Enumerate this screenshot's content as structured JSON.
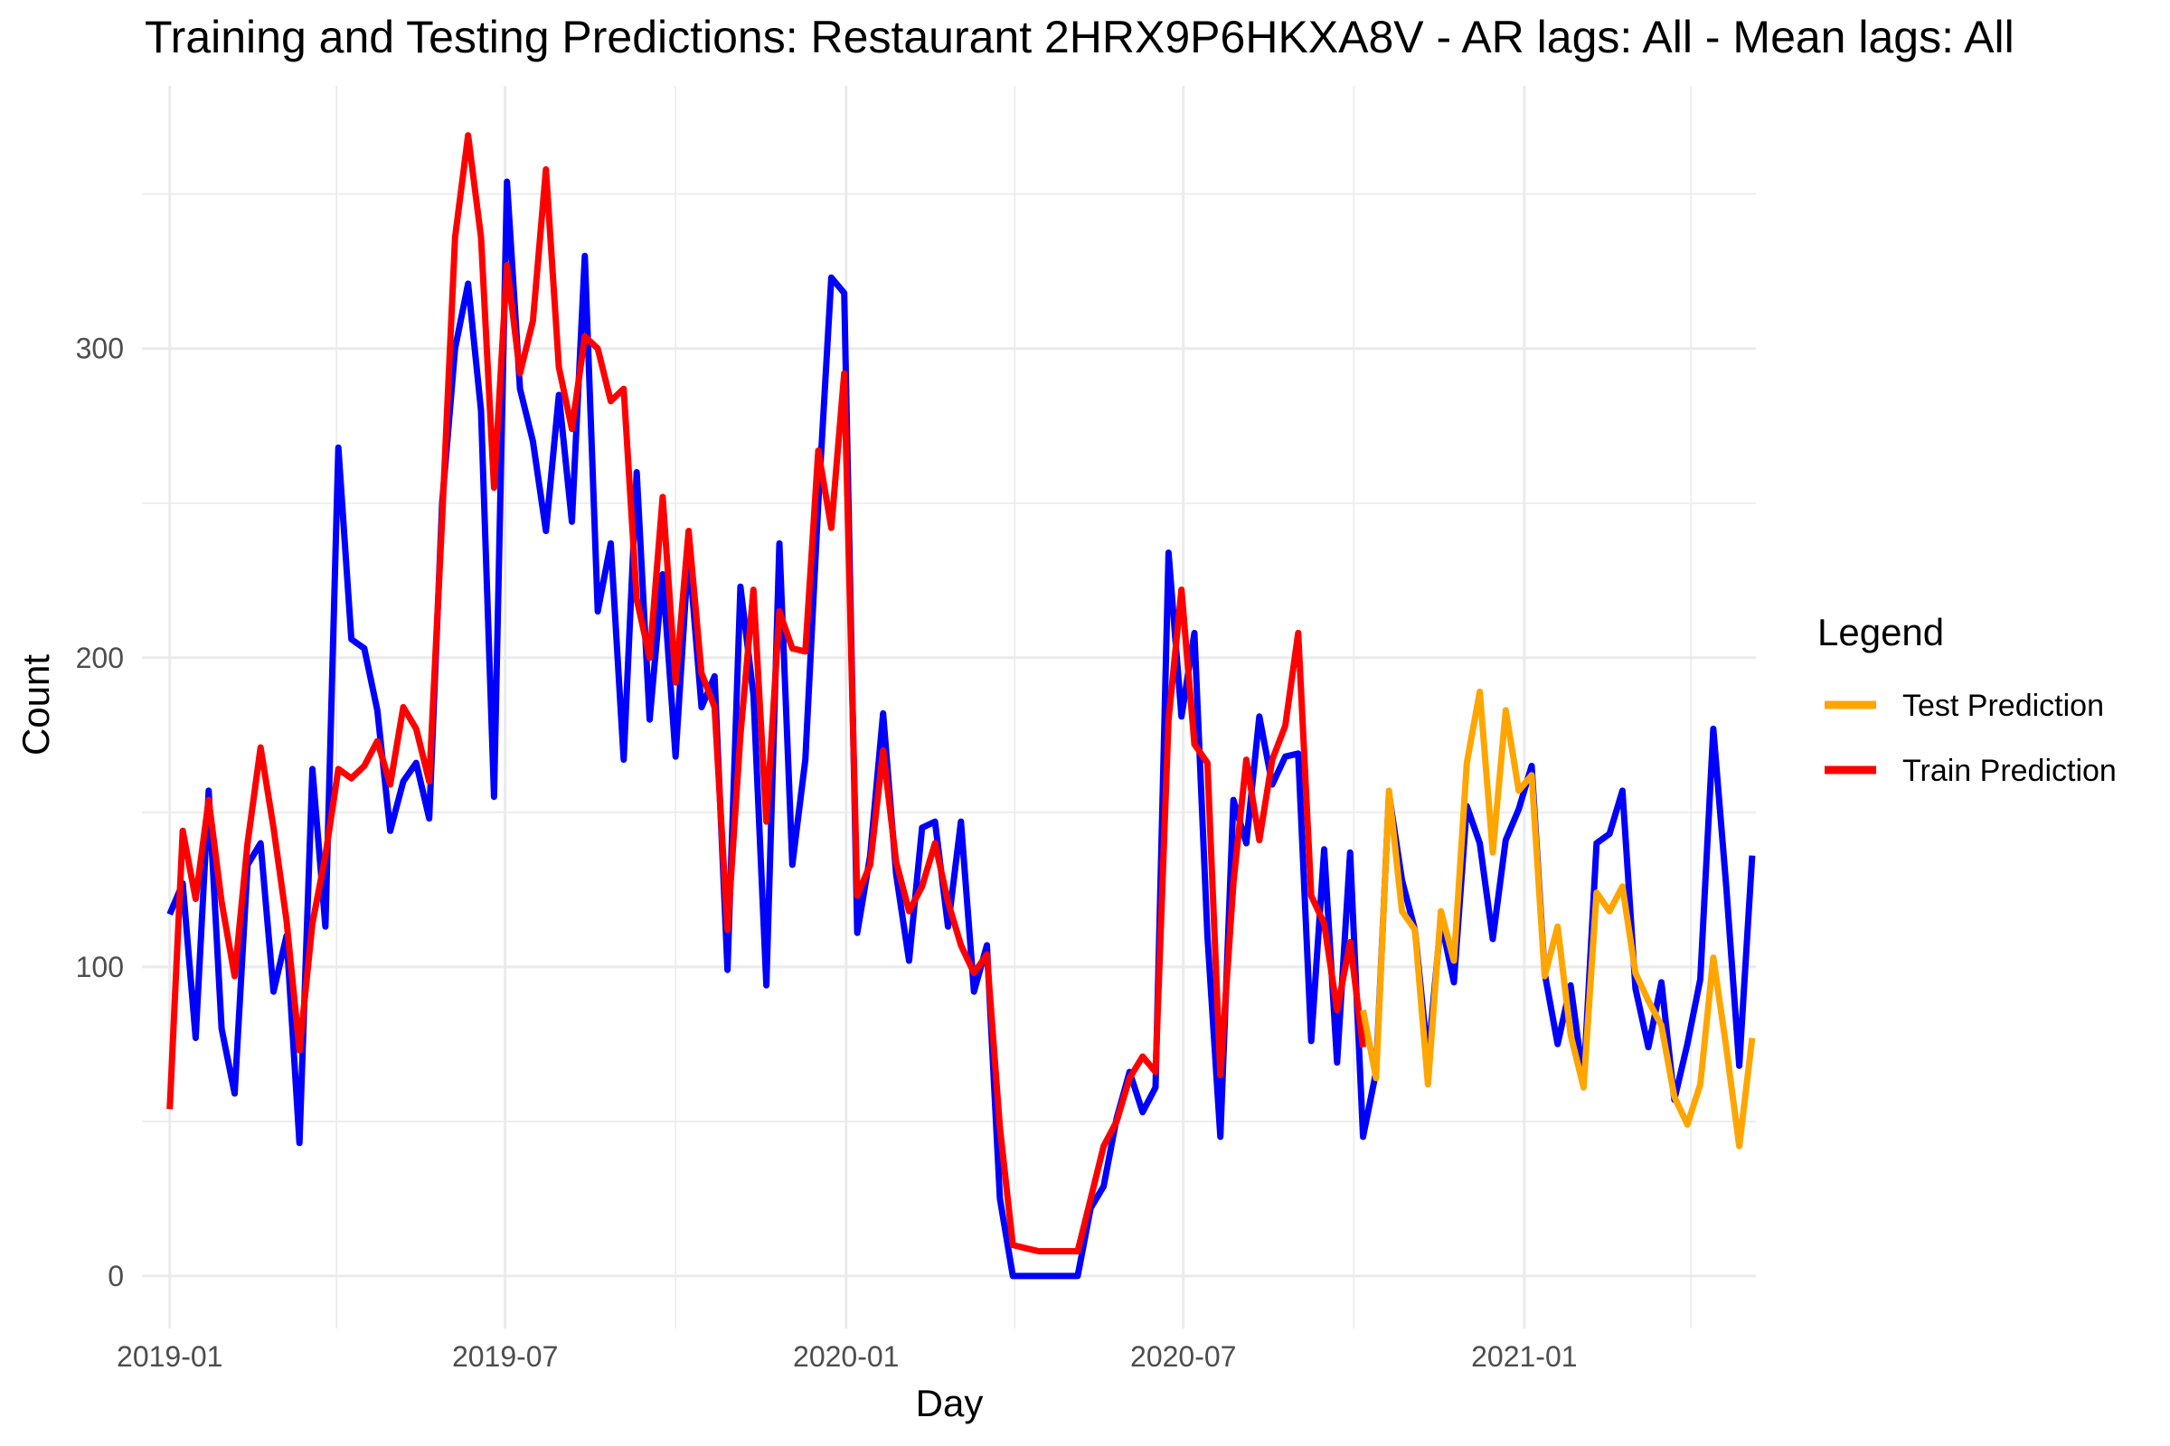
{
  "chart_data": {
    "type": "line",
    "title": "Training and Testing Predictions: Restaurant 2HRX9P6HKXA8V - AR lags: All - Mean lags: All",
    "xlabel": "Day",
    "ylabel": "Count",
    "x_ticks": [
      "2019-01",
      "2019-07",
      "2020-01",
      "2020-07",
      "2021-01"
    ],
    "y_ticks": [
      0,
      100,
      200,
      300
    ],
    "xlim": [
      "2018-12-17",
      "2021-05-06"
    ],
    "ylim": [
      -17,
      385
    ],
    "grid": true,
    "legend": {
      "title": "Legend",
      "position": "right",
      "entries": [
        {
          "label": "Test Prediction",
          "color": "#FFA500"
        },
        {
          "label": "Train Prediction",
          "color": "#FF0000"
        }
      ]
    },
    "series": [
      {
        "color": "#0000FF",
        "points": [
          [
            "2019-01-01",
            117
          ],
          [
            "2019-01-08",
            127
          ],
          [
            "2019-01-15",
            77
          ],
          [
            "2019-01-22",
            157
          ],
          [
            "2019-01-29",
            80
          ],
          [
            "2019-02-05",
            59
          ],
          [
            "2019-02-12",
            133
          ],
          [
            "2019-02-19",
            140
          ],
          [
            "2019-02-26",
            92
          ],
          [
            "2019-03-05",
            110
          ],
          [
            "2019-03-12",
            43
          ],
          [
            "2019-03-19",
            164
          ],
          [
            "2019-03-26",
            113
          ],
          [
            "2019-04-02",
            268
          ],
          [
            "2019-04-09",
            206
          ],
          [
            "2019-04-16",
            203
          ],
          [
            "2019-04-23",
            183
          ],
          [
            "2019-04-30",
            144
          ],
          [
            "2019-05-07",
            160
          ],
          [
            "2019-05-14",
            166
          ],
          [
            "2019-05-21",
            148
          ],
          [
            "2019-05-28",
            250
          ],
          [
            "2019-06-04",
            300
          ],
          [
            "2019-06-11",
            321
          ],
          [
            "2019-06-18",
            280
          ],
          [
            "2019-06-25",
            155
          ],
          [
            "2019-07-02",
            354
          ],
          [
            "2019-07-09",
            287
          ],
          [
            "2019-07-16",
            270
          ],
          [
            "2019-07-23",
            241
          ],
          [
            "2019-07-30",
            285
          ],
          [
            "2019-08-06",
            244
          ],
          [
            "2019-08-13",
            330
          ],
          [
            "2019-08-20",
            215
          ],
          [
            "2019-08-27",
            237
          ],
          [
            "2019-09-03",
            167
          ],
          [
            "2019-09-10",
            260
          ],
          [
            "2019-09-17",
            180
          ],
          [
            "2019-09-24",
            227
          ],
          [
            "2019-10-01",
            168
          ],
          [
            "2019-10-08",
            235
          ],
          [
            "2019-10-15",
            184
          ],
          [
            "2019-10-22",
            194
          ],
          [
            "2019-10-29",
            99
          ],
          [
            "2019-11-05",
            223
          ],
          [
            "2019-11-12",
            188
          ],
          [
            "2019-11-19",
            94
          ],
          [
            "2019-11-26",
            237
          ],
          [
            "2019-12-03",
            133
          ],
          [
            "2019-12-10",
            167
          ],
          [
            "2019-12-17",
            250
          ],
          [
            "2019-12-24",
            323
          ],
          [
            "2019-12-31",
            318
          ],
          [
            "2020-01-07",
            111
          ],
          [
            "2020-01-14",
            136
          ],
          [
            "2020-01-21",
            182
          ],
          [
            "2020-01-28",
            130
          ],
          [
            "2020-02-04",
            102
          ],
          [
            "2020-02-11",
            145
          ],
          [
            "2020-02-18",
            147
          ],
          [
            "2020-02-25",
            113
          ],
          [
            "2020-03-03",
            147
          ],
          [
            "2020-03-10",
            92
          ],
          [
            "2020-03-17",
            107
          ],
          [
            "2020-03-24",
            25
          ],
          [
            "2020-03-31",
            0
          ],
          [
            "2020-04-07",
            0
          ],
          [
            "2020-04-14",
            0
          ],
          [
            "2020-04-21",
            0
          ],
          [
            "2020-04-28",
            0
          ],
          [
            "2020-05-05",
            0
          ],
          [
            "2020-05-12",
            22
          ],
          [
            "2020-05-19",
            29
          ],
          [
            "2020-05-26",
            51
          ],
          [
            "2020-06-02",
            66
          ],
          [
            "2020-06-09",
            53
          ],
          [
            "2020-06-16",
            61
          ],
          [
            "2020-06-23",
            234
          ],
          [
            "2020-06-30",
            181
          ],
          [
            "2020-07-07",
            208
          ],
          [
            "2020-07-14",
            110
          ],
          [
            "2020-07-21",
            45
          ],
          [
            "2020-07-28",
            154
          ],
          [
            "2020-08-04",
            140
          ],
          [
            "2020-08-11",
            181
          ],
          [
            "2020-08-18",
            159
          ],
          [
            "2020-08-25",
            168
          ],
          [
            "2020-09-01",
            169
          ],
          [
            "2020-09-08",
            76
          ],
          [
            "2020-09-15",
            138
          ],
          [
            "2020-09-22",
            69
          ],
          [
            "2020-09-29",
            137
          ],
          [
            "2020-10-06",
            45
          ],
          [
            "2020-10-13",
            66
          ],
          [
            "2020-10-20",
            156
          ],
          [
            "2020-10-27",
            128
          ],
          [
            "2020-11-03",
            112
          ],
          [
            "2020-11-10",
            70
          ],
          [
            "2020-11-17",
            115
          ],
          [
            "2020-11-24",
            95
          ],
          [
            "2020-12-01",
            152
          ],
          [
            "2020-12-08",
            140
          ],
          [
            "2020-12-15",
            109
          ],
          [
            "2020-12-22",
            141
          ],
          [
            "2020-12-29",
            151
          ],
          [
            "2021-01-05",
            165
          ],
          [
            "2021-01-12",
            98
          ],
          [
            "2021-01-19",
            75
          ],
          [
            "2021-01-26",
            94
          ],
          [
            "2021-02-02",
            63
          ],
          [
            "2021-02-09",
            140
          ],
          [
            "2021-02-16",
            143
          ],
          [
            "2021-02-23",
            157
          ],
          [
            "2021-03-02",
            93
          ],
          [
            "2021-03-09",
            74
          ],
          [
            "2021-03-16",
            95
          ],
          [
            "2021-03-23",
            57
          ],
          [
            "2021-03-30",
            75
          ],
          [
            "2021-04-06",
            96
          ],
          [
            "2021-04-13",
            177
          ],
          [
            "2021-04-20",
            126
          ],
          [
            "2021-04-27",
            68
          ],
          [
            "2021-05-04",
            136
          ]
        ]
      },
      {
        "name": "Train Prediction",
        "color": "#FF0000",
        "points": [
          [
            "2019-01-01",
            54
          ],
          [
            "2019-01-08",
            144
          ],
          [
            "2019-01-15",
            122
          ],
          [
            "2019-01-22",
            154
          ],
          [
            "2019-01-29",
            121
          ],
          [
            "2019-02-05",
            97
          ],
          [
            "2019-02-12",
            140
          ],
          [
            "2019-02-19",
            171
          ],
          [
            "2019-02-26",
            145
          ],
          [
            "2019-03-05",
            115
          ],
          [
            "2019-03-12",
            73
          ],
          [
            "2019-03-19",
            114
          ],
          [
            "2019-03-26",
            136
          ],
          [
            "2019-04-02",
            164
          ],
          [
            "2019-04-09",
            161
          ],
          [
            "2019-04-16",
            165
          ],
          [
            "2019-04-23",
            173
          ],
          [
            "2019-04-30",
            159
          ],
          [
            "2019-05-07",
            184
          ],
          [
            "2019-05-14",
            177
          ],
          [
            "2019-05-21",
            160
          ],
          [
            "2019-05-28",
            245
          ],
          [
            "2019-06-04",
            336
          ],
          [
            "2019-06-11",
            369
          ],
          [
            "2019-06-18",
            336
          ],
          [
            "2019-06-25",
            255
          ],
          [
            "2019-07-02",
            327
          ],
          [
            "2019-07-09",
            292
          ],
          [
            "2019-07-16",
            309
          ],
          [
            "2019-07-23",
            358
          ],
          [
            "2019-07-30",
            294
          ],
          [
            "2019-08-06",
            274
          ],
          [
            "2019-08-13",
            304
          ],
          [
            "2019-08-20",
            300
          ],
          [
            "2019-08-27",
            283
          ],
          [
            "2019-09-03",
            287
          ],
          [
            "2019-09-10",
            219
          ],
          [
            "2019-09-17",
            200
          ],
          [
            "2019-09-24",
            252
          ],
          [
            "2019-10-01",
            192
          ],
          [
            "2019-10-08",
            241
          ],
          [
            "2019-10-15",
            195
          ],
          [
            "2019-10-22",
            184
          ],
          [
            "2019-10-29",
            112
          ],
          [
            "2019-11-05",
            175
          ],
          [
            "2019-11-12",
            222
          ],
          [
            "2019-11-19",
            147
          ],
          [
            "2019-11-26",
            215
          ],
          [
            "2019-12-03",
            203
          ],
          [
            "2019-12-10",
            202
          ],
          [
            "2019-12-17",
            267
          ],
          [
            "2019-12-24",
            242
          ],
          [
            "2019-12-31",
            292
          ],
          [
            "2020-01-07",
            123
          ],
          [
            "2020-01-14",
            133
          ],
          [
            "2020-01-21",
            170
          ],
          [
            "2020-01-28",
            134
          ],
          [
            "2020-02-04",
            118
          ],
          [
            "2020-02-11",
            126
          ],
          [
            "2020-02-18",
            140
          ],
          [
            "2020-02-25",
            121
          ],
          [
            "2020-03-03",
            107
          ],
          [
            "2020-03-10",
            98
          ],
          [
            "2020-03-17",
            104
          ],
          [
            "2020-03-24",
            48
          ],
          [
            "2020-03-31",
            10
          ],
          [
            "2020-04-07",
            9
          ],
          [
            "2020-04-14",
            8
          ],
          [
            "2020-04-21",
            8
          ],
          [
            "2020-04-28",
            8
          ],
          [
            "2020-05-05",
            8
          ],
          [
            "2020-05-12",
            25
          ],
          [
            "2020-05-19",
            42
          ],
          [
            "2020-05-26",
            50
          ],
          [
            "2020-06-02",
            64
          ],
          [
            "2020-06-09",
            71
          ],
          [
            "2020-06-16",
            66
          ],
          [
            "2020-06-23",
            180
          ],
          [
            "2020-06-30",
            222
          ],
          [
            "2020-07-07",
            172
          ],
          [
            "2020-07-14",
            166
          ],
          [
            "2020-07-21",
            65
          ],
          [
            "2020-07-28",
            127
          ],
          [
            "2020-08-04",
            167
          ],
          [
            "2020-08-11",
            141
          ],
          [
            "2020-08-18",
            167
          ],
          [
            "2020-08-25",
            178
          ],
          [
            "2020-09-01",
            208
          ],
          [
            "2020-09-08",
            123
          ],
          [
            "2020-09-15",
            114
          ],
          [
            "2020-09-22",
            86
          ],
          [
            "2020-09-29",
            108
          ],
          [
            "2020-10-06",
            74
          ]
        ]
      },
      {
        "name": "Test Prediction",
        "color": "#FFA500",
        "points": [
          [
            "2020-10-06",
            86
          ],
          [
            "2020-10-13",
            64
          ],
          [
            "2020-10-20",
            157
          ],
          [
            "2020-10-27",
            118
          ],
          [
            "2020-11-03",
            112
          ],
          [
            "2020-11-10",
            62
          ],
          [
            "2020-11-17",
            118
          ],
          [
            "2020-11-24",
            102
          ],
          [
            "2020-12-01",
            166
          ],
          [
            "2020-12-08",
            189
          ],
          [
            "2020-12-15",
            137
          ],
          [
            "2020-12-22",
            183
          ],
          [
            "2020-12-29",
            157
          ],
          [
            "2021-01-05",
            162
          ],
          [
            "2021-01-12",
            97
          ],
          [
            "2021-01-19",
            113
          ],
          [
            "2021-01-26",
            78
          ],
          [
            "2021-02-02",
            61
          ],
          [
            "2021-02-09",
            124
          ],
          [
            "2021-02-16",
            118
          ],
          [
            "2021-02-23",
            126
          ],
          [
            "2021-03-02",
            98
          ],
          [
            "2021-03-09",
            89
          ],
          [
            "2021-03-16",
            81
          ],
          [
            "2021-03-23",
            58
          ],
          [
            "2021-03-30",
            49
          ],
          [
            "2021-04-06",
            62
          ],
          [
            "2021-04-13",
            103
          ],
          [
            "2021-04-20",
            74
          ],
          [
            "2021-04-27",
            42
          ],
          [
            "2021-05-04",
            77
          ]
        ]
      }
    ]
  }
}
